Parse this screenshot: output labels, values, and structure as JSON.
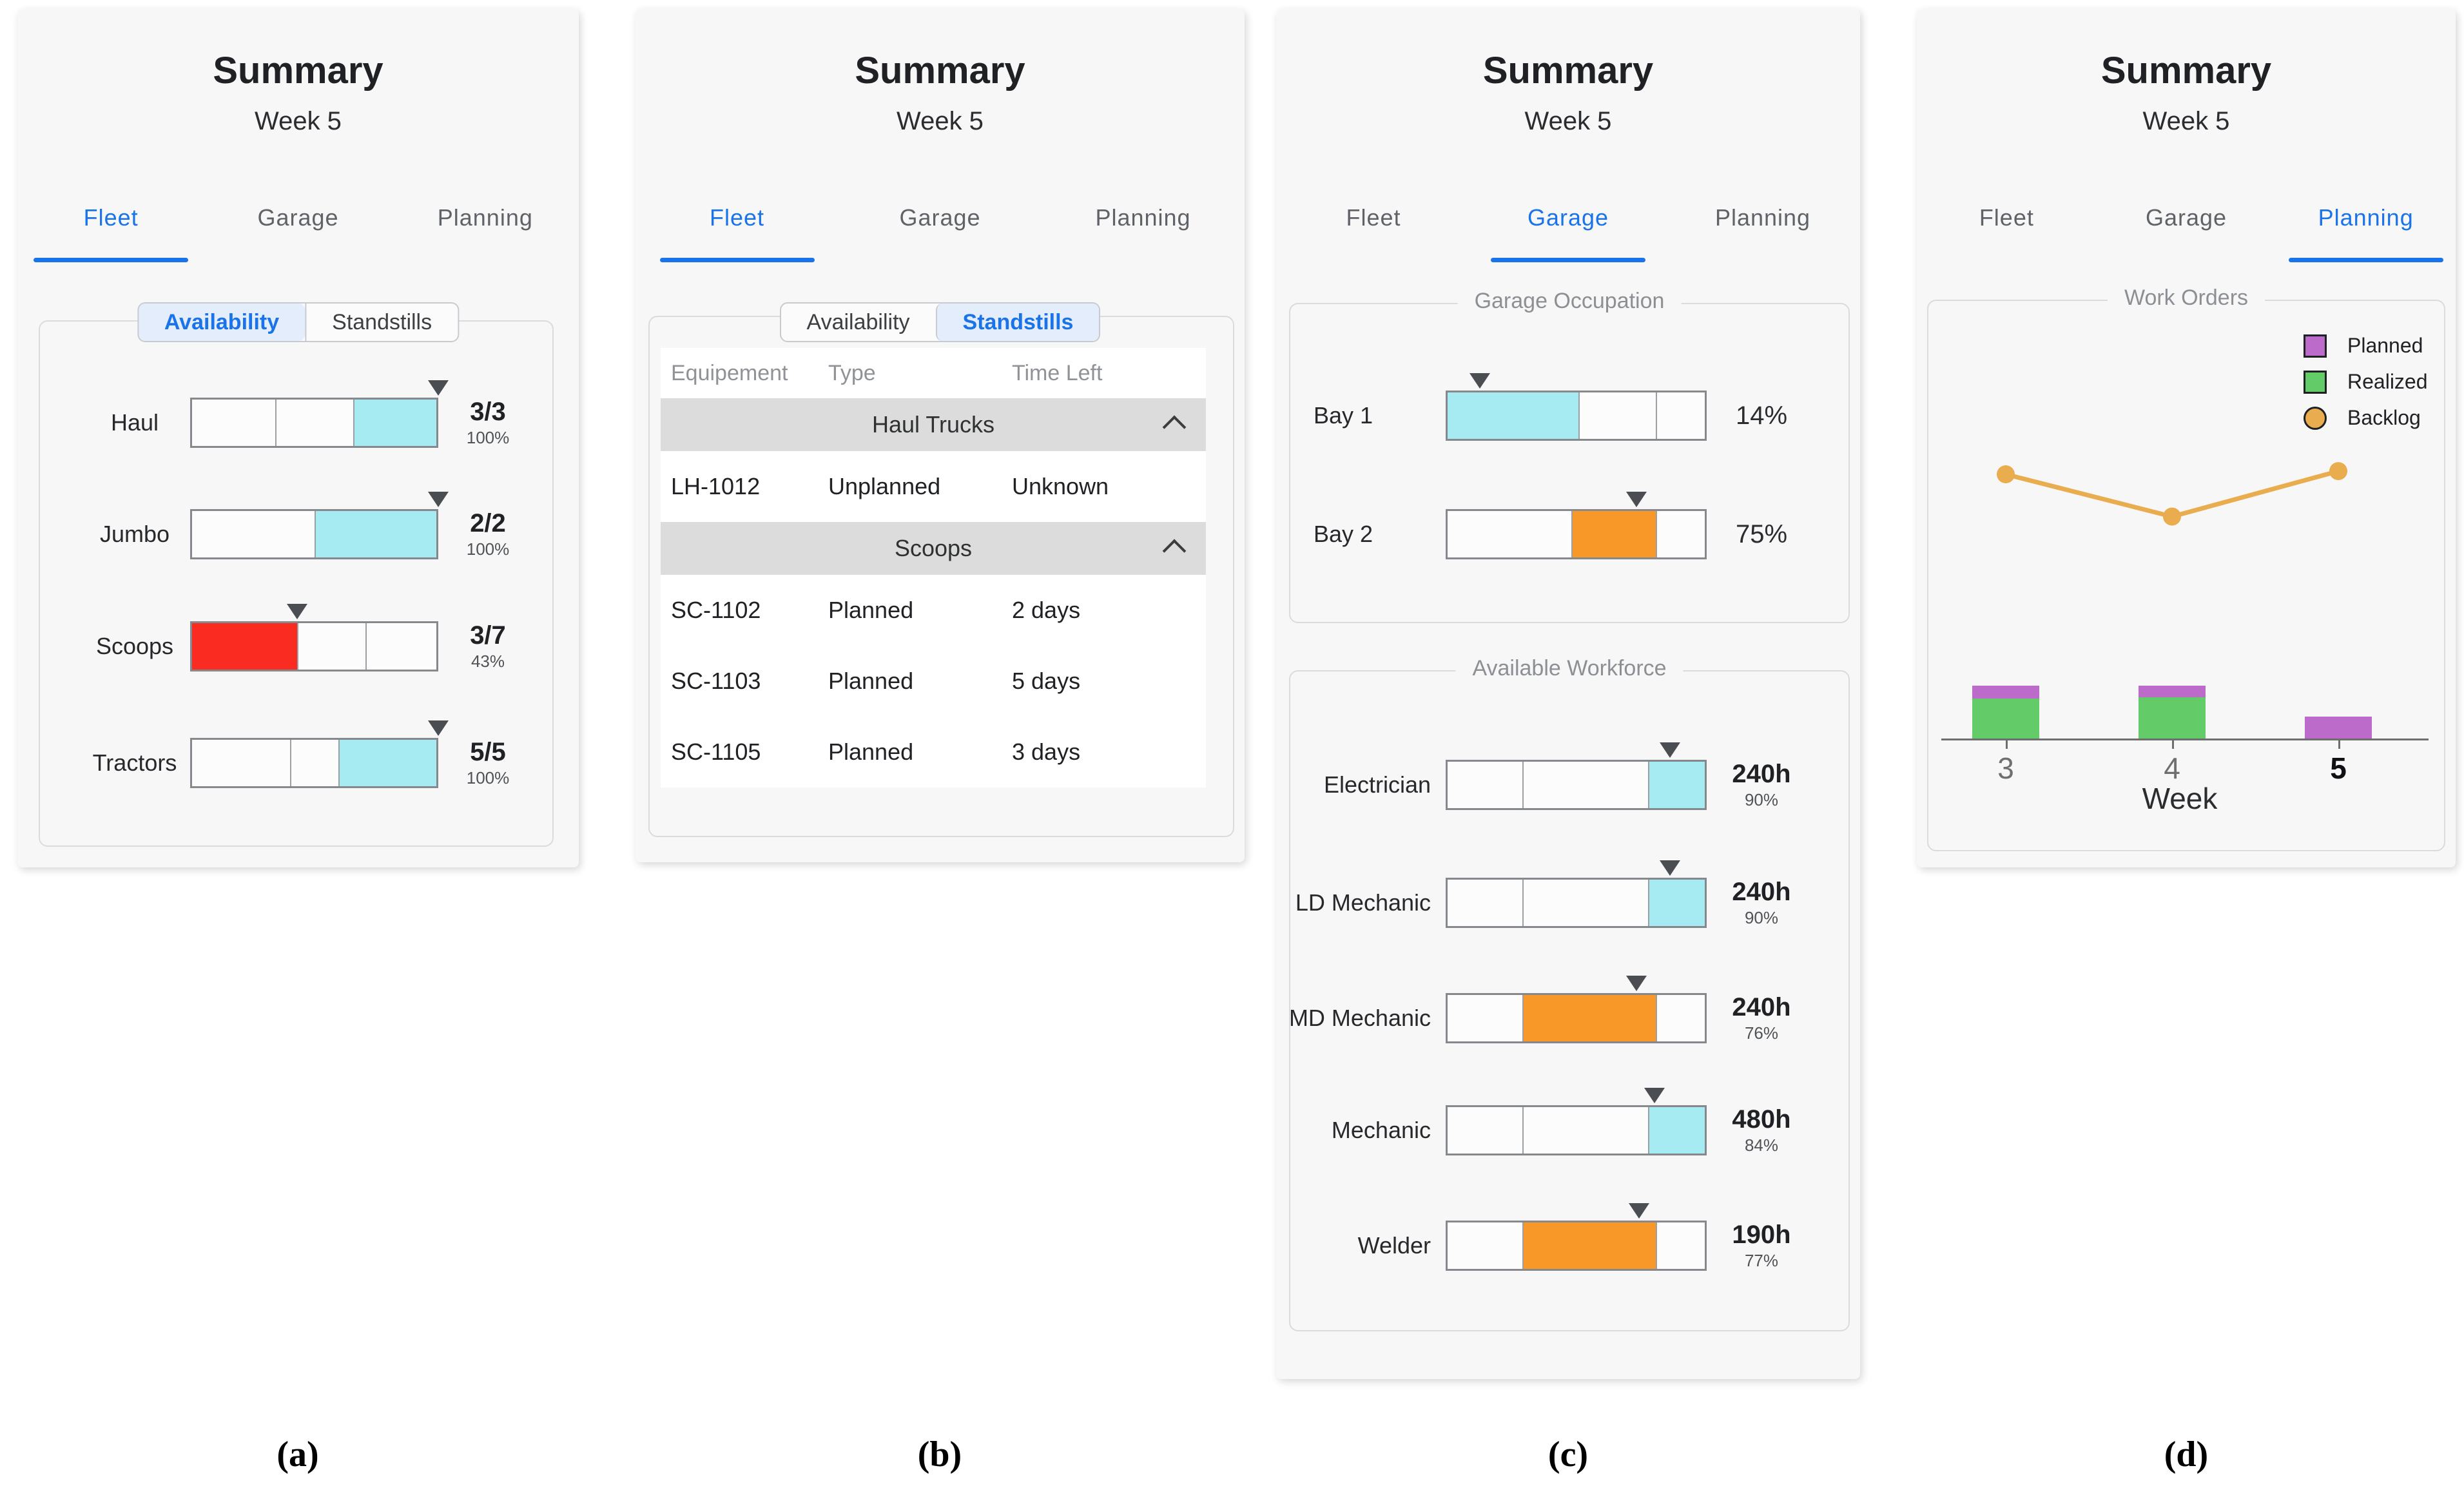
{
  "colors": {
    "accent_blue": "#1A73E8",
    "tab_inactive_text": "#5F6368",
    "panel_bg": "#F7F7F8",
    "card_border": "#D9DBDD",
    "chip_active_bg": "#E4EDFB",
    "chip_border": "#C7CBD0",
    "bar_border": "#85898D",
    "white": "#FCFCFD",
    "cyan": "#A6EAF2",
    "red": "#FA2B21",
    "orange": "#F89829",
    "purple": "#BC6BCA",
    "green": "#63CC69",
    "line_orange": "#E9AC4E",
    "marker_gray": "#4A4E52",
    "group_row_bg": "#DCDCDC",
    "table_header_text": "#8F9398",
    "section_title_gray": "#8C8F94",
    "axis_gray": "#6E6E6E"
  },
  "captions": [
    "(a)",
    "(b)",
    "(c)",
    "(d)"
  ],
  "panels": {
    "a": {
      "title": "Summary",
      "subtitle": "Week 5",
      "tabs": [
        {
          "label": "Fleet",
          "active": true
        },
        {
          "label": "Garage",
          "active": false
        },
        {
          "label": "Planning",
          "active": false
        }
      ],
      "toggle": [
        {
          "label": "Availability",
          "active": true
        },
        {
          "label": "Standstills",
          "active": false
        }
      ],
      "rows": [
        {
          "label": "Haul",
          "value": "3/3",
          "pct": "100%",
          "marker": 100,
          "segments": [
            {
              "w": 34,
              "c": "white"
            },
            {
              "w": 32,
              "c": "white"
            },
            {
              "w": 34,
              "c": "cyan"
            }
          ]
        },
        {
          "label": "Jumbo",
          "value": "2/2",
          "pct": "100%",
          "marker": 100,
          "segments": [
            {
              "w": 50,
              "c": "white"
            },
            {
              "w": 50,
              "c": "cyan"
            }
          ]
        },
        {
          "label": "Scoops",
          "value": "3/7",
          "pct": "43%",
          "marker": 43,
          "segments": [
            {
              "w": 43,
              "c": "red"
            },
            {
              "w": 28,
              "c": "white"
            },
            {
              "w": 29,
              "c": "white"
            }
          ]
        },
        {
          "label": "Tractors",
          "value": "5/5",
          "pct": "100%",
          "marker": 100,
          "segments": [
            {
              "w": 40,
              "c": "white"
            },
            {
              "w": 20,
              "c": "white"
            },
            {
              "w": 40,
              "c": "cyan"
            }
          ]
        }
      ]
    },
    "b": {
      "title": "Summary",
      "subtitle": "Week 5",
      "tabs": [
        {
          "label": "Fleet",
          "active": true
        },
        {
          "label": "Garage",
          "active": false
        },
        {
          "label": "Planning",
          "active": false
        }
      ],
      "toggle": [
        {
          "label": "Availability",
          "active": false
        },
        {
          "label": "Standstills",
          "active": true
        }
      ],
      "table": {
        "columns": [
          "Equipement",
          "Type",
          "Time Left"
        ],
        "groups": [
          {
            "name": "Haul Trucks",
            "rows": [
              {
                "equipment": "LH-1012",
                "type": "Unplanned",
                "time_left": "Unknown"
              }
            ]
          },
          {
            "name": "Scoops",
            "rows": [
              {
                "equipment": "SC-1102",
                "type": "Planned",
                "time_left": "2 days"
              },
              {
                "equipment": "SC-1103",
                "type": "Planned",
                "time_left": "5 days"
              },
              {
                "equipment": "SC-1105",
                "type": "Planned",
                "time_left": "3 days"
              }
            ]
          }
        ]
      }
    },
    "c": {
      "title": "Summary",
      "subtitle": "Week 5",
      "tabs": [
        {
          "label": "Fleet",
          "active": false
        },
        {
          "label": "Garage",
          "active": true
        },
        {
          "label": "Planning",
          "active": false
        }
      ],
      "sections": [
        {
          "title": "Garage Occupation",
          "rows": [
            {
              "label": "Bay 1",
              "value": "14%",
              "marker": 13,
              "segments": [
                {
                  "w": 51,
                  "c": "cyan"
                },
                {
                  "w": 30,
                  "c": "white"
                },
                {
                  "w": 19,
                  "c": "white"
                }
              ]
            },
            {
              "label": "Bay 2",
              "value": "75%",
              "marker": 73,
              "segments": [
                {
                  "w": 48,
                  "c": "white"
                },
                {
                  "w": 33,
                  "c": "orange"
                },
                {
                  "w": 19,
                  "c": "white"
                }
              ]
            }
          ]
        },
        {
          "title": "Available Workforce",
          "rows": [
            {
              "label": "Electrician",
              "value": "240h",
              "pct": "90%",
              "marker": 86,
              "segments": [
                {
                  "w": 29,
                  "c": "white"
                },
                {
                  "w": 49,
                  "c": "white"
                },
                {
                  "w": 22,
                  "c": "cyan"
                }
              ]
            },
            {
              "label": "LD Mechanic",
              "value": "240h",
              "pct": "90%",
              "marker": 86,
              "segments": [
                {
                  "w": 29,
                  "c": "white"
                },
                {
                  "w": 49,
                  "c": "white"
                },
                {
                  "w": 22,
                  "c": "cyan"
                }
              ]
            },
            {
              "label": "MD Mechanic",
              "value": "240h",
              "pct": "76%",
              "marker": 73,
              "segments": [
                {
                  "w": 29,
                  "c": "white"
                },
                {
                  "w": 52,
                  "c": "orange"
                },
                {
                  "w": 19,
                  "c": "white"
                }
              ]
            },
            {
              "label": "Mechanic",
              "value": "480h",
              "pct": "84%",
              "marker": 80,
              "segments": [
                {
                  "w": 29,
                  "c": "white"
                },
                {
                  "w": 49,
                  "c": "white"
                },
                {
                  "w": 22,
                  "c": "cyan"
                }
              ]
            },
            {
              "label": "Welder",
              "value": "190h",
              "pct": "77%",
              "marker": 74,
              "segments": [
                {
                  "w": 29,
                  "c": "white"
                },
                {
                  "w": 52,
                  "c": "orange"
                },
                {
                  "w": 19,
                  "c": "white"
                }
              ]
            }
          ]
        }
      ]
    },
    "d": {
      "title": "Summary",
      "subtitle": "Week 5",
      "tabs": [
        {
          "label": "Fleet",
          "active": false
        },
        {
          "label": "Garage",
          "active": false
        },
        {
          "label": "Planning",
          "active": true
        }
      ]
    }
  },
  "chart_data": {
    "type": "composed",
    "title": "Work Orders",
    "xlabel": "Week",
    "categories": [
      "3",
      "4",
      "5"
    ],
    "highlighted_category": "5",
    "legend": [
      {
        "label": "Planned",
        "shape": "square",
        "color": "purple"
      },
      {
        "label": "Realized",
        "shape": "square",
        "color": "green"
      },
      {
        "label": "Backlog",
        "shape": "circle",
        "color": "line_orange"
      }
    ],
    "series": [
      {
        "name": "Planned",
        "type": "bar",
        "color": "purple",
        "values": [
          1.2,
          1.1,
          2.1
        ]
      },
      {
        "name": "Realized",
        "type": "bar",
        "color": "green",
        "values": [
          3.8,
          3.9,
          0
        ]
      },
      {
        "name": "Backlog",
        "type": "line",
        "color": "line_orange",
        "values": [
          25,
          21,
          25.3
        ]
      }
    ],
    "ylim": [
      0,
      27
    ],
    "grid": false,
    "y_axis_visible": false,
    "units": "work orders (estimated from chart pixel heights)"
  }
}
